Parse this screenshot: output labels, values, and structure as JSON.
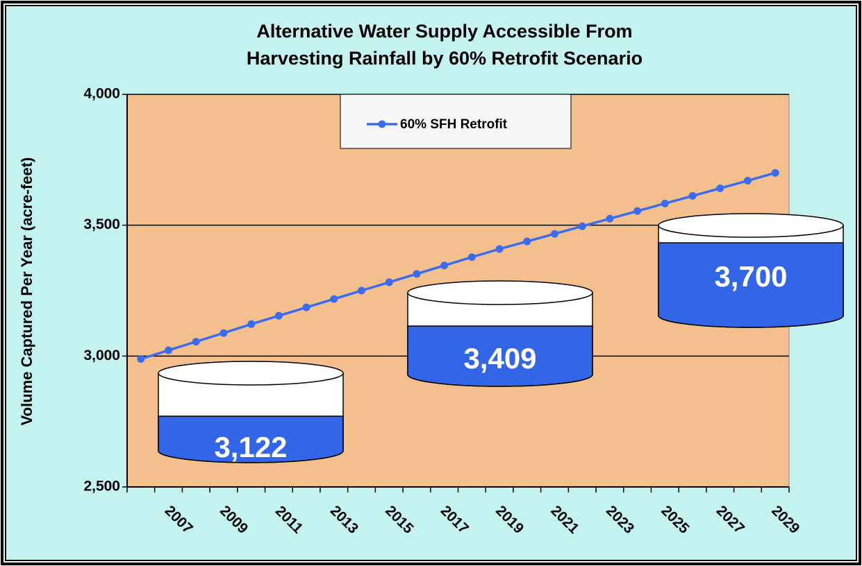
{
  "chart_data": {
    "type": "line",
    "title": [
      "Alternative Water Supply Accessible From",
      "Harvesting Rainfall by 60% Retrofit Scenario"
    ],
    "y_label": "Volume Captured Per Year (acre-feet)",
    "categories": [
      null,
      "2007",
      null,
      "2009",
      null,
      "2011",
      null,
      "2013",
      null,
      "2015",
      null,
      "2017",
      null,
      "2019",
      null,
      "2021",
      null,
      "2023",
      null,
      "2025",
      null,
      "2027",
      null,
      "2029"
    ],
    "series": [
      {
        "name": "60% SFH Retrofit",
        "color": "#3b6cf0",
        "values": [
          2989,
          3022,
          3055,
          3088,
          3122,
          3154,
          3186,
          3218,
          3250,
          3282,
          3314,
          3346,
          3378,
          3409,
          3438,
          3467,
          3496,
          3525,
          3554,
          3583,
          3612,
          3641,
          3670,
          3700
        ]
      }
    ],
    "ylim": [
      2500,
      4000
    ],
    "yticks": [
      {
        "value": 2500,
        "label": "2,500"
      },
      {
        "value": 3000,
        "label": "3,000"
      },
      {
        "value": 3500,
        "label": "3,500"
      },
      {
        "value": 4000,
        "label": "4,000"
      }
    ],
    "grid": true,
    "legend": "top",
    "annotations": [
      "3,122",
      "3,409",
      "3,700"
    ]
  }
}
